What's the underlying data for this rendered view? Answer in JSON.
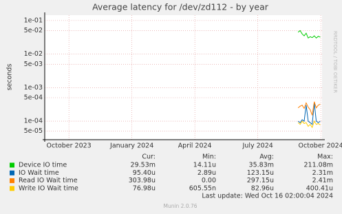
{
  "chart_data": {
    "type": "line",
    "title": "Average latency for /dev/zd112 - by year",
    "y_label": "seconds",
    "side_text": "RRDTOOL / TOBI OETIKER",
    "log_scale": true,
    "grid": true,
    "x": [
      2024.66,
      2024.668,
      2024.676,
      2024.684,
      2024.692,
      2024.7,
      2024.708,
      2024.716,
      2024.724,
      2024.732,
      2024.74,
      2024.748
    ],
    "xlim": [
      2023.654,
      2024.755
    ],
    "xticks": [
      {
        "value": 2023.75,
        "label": "October 2023"
      },
      {
        "value": 2024.0,
        "label": "January 2024"
      },
      {
        "value": 2024.25,
        "label": "April 2024"
      },
      {
        "value": 2024.5,
        "label": "July 2024"
      },
      {
        "value": 2024.75,
        "label": "October 2024"
      }
    ],
    "ylim": [
      2.8e-05,
      0.145
    ],
    "yticks": [
      {
        "value": 0.1,
        "label": "1e-01"
      },
      {
        "value": 0.05,
        "label": "5e-02"
      },
      {
        "value": 0.01,
        "label": "1e-02"
      },
      {
        "value": 0.005,
        "label": "5e-03"
      },
      {
        "value": 0.001,
        "label": "1e-03"
      },
      {
        "value": 0.0005,
        "label": "5e-04"
      },
      {
        "value": 0.0001,
        "label": "1e-04"
      },
      {
        "value": 5e-05,
        "label": "5e-05"
      }
    ],
    "series": [
      {
        "name": "Device IO time",
        "color": "#00cc00",
        "values": [
          0.045,
          0.05,
          0.04,
          0.035,
          0.042,
          0.03,
          0.033,
          0.031,
          0.035,
          0.03,
          0.034,
          0.032
        ]
      },
      {
        "name": "IO Wait time",
        "color": "#0066b3",
        "values": [
          0.0001,
          9e-05,
          0.00011,
          0.0001,
          0.0003,
          0.0001,
          9e-05,
          8e-05,
          0.00035,
          0.0001,
          9e-05,
          0.0001
        ]
      },
      {
        "name": "Read IO Wait time",
        "color": "#ff8000",
        "values": [
          0.00025,
          0.00028,
          0.0003,
          0.00024,
          0.00035,
          0.00026,
          0.00022,
          0.00015,
          0.00038,
          0.00025,
          0.0003,
          0.00032
        ]
      },
      {
        "name": "Write IO Wait time",
        "color": "#ffcc00",
        "values": [
          9e-05,
          8e-05,
          0.0001,
          8.5e-05,
          9e-05,
          7e-05,
          8e-05,
          6.5e-05,
          0.0001,
          8e-05,
          8.5e-05,
          7.7e-05
        ]
      }
    ],
    "legend_headers": [
      "Cur:",
      "Min:",
      "Avg:",
      "Max:"
    ],
    "legend_stats": [
      [
        "29.53m",
        "14.11u",
        "35.83m",
        "211.08m"
      ],
      [
        "95.40u",
        "2.89u",
        "123.15u",
        "2.31m"
      ],
      [
        "303.98u",
        "0.00",
        "297.15u",
        "2.41m"
      ],
      [
        "76.98u",
        "605.55n",
        "82.96u",
        "400.41u"
      ]
    ],
    "last_update": "Last update: Wed Oct 16 02:00:04 2024",
    "footer": "Munin 2.0.76"
  }
}
